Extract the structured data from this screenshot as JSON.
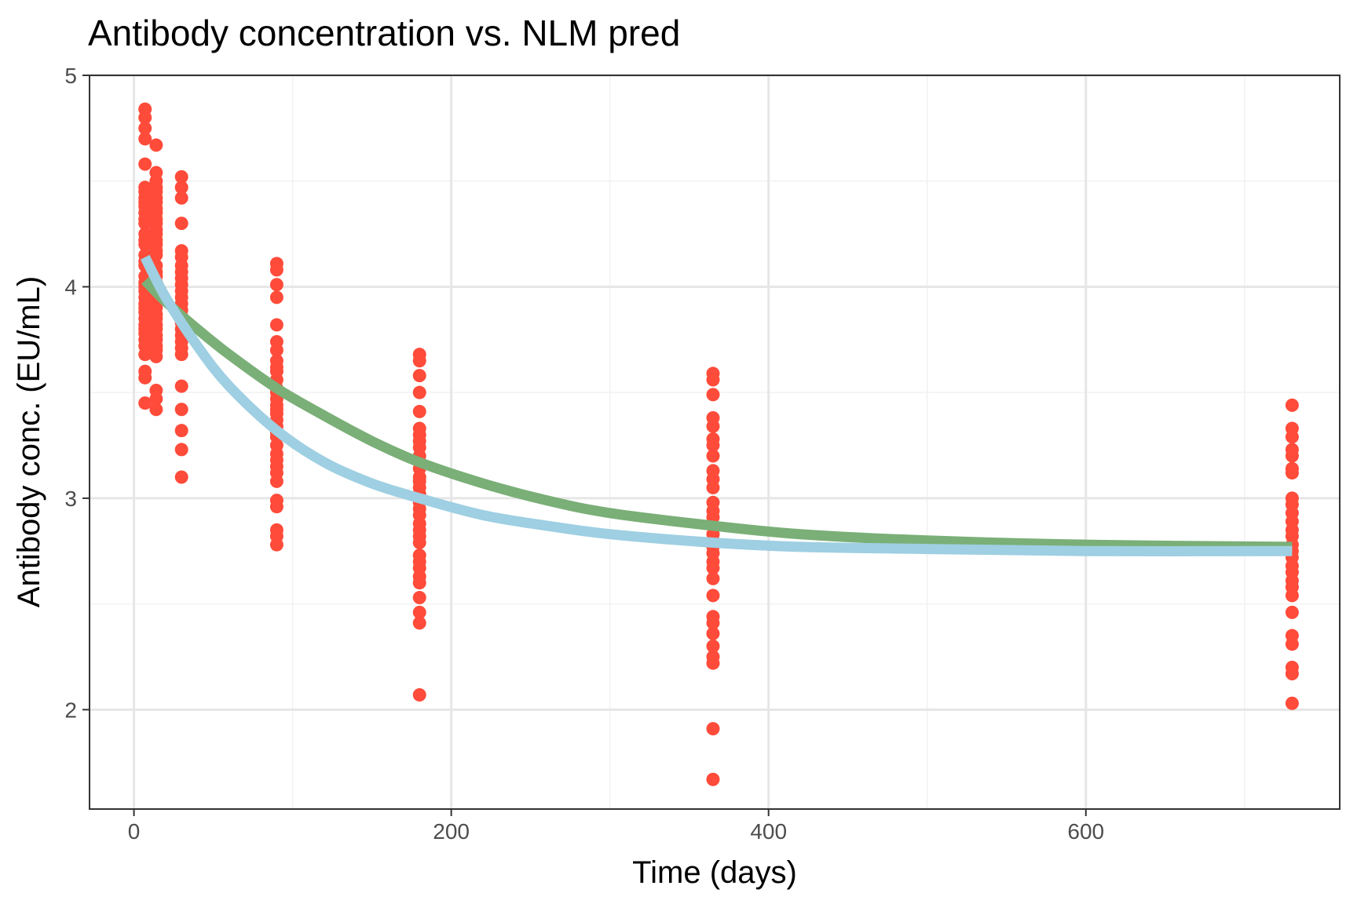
{
  "chart_data": {
    "type": "scatter",
    "title": "Antibody concentration vs. NLM pred",
    "xlabel": "Time (days)",
    "ylabel": "Antibody conc. (EU/mL)",
    "xlim": [
      -28,
      760
    ],
    "ylim": [
      1.53,
      5.0
    ],
    "x_ticks": [
      0,
      200,
      400,
      600
    ],
    "y_ticks": [
      2,
      3,
      4,
      5
    ],
    "grid": true,
    "legend": "none",
    "colors": {
      "points": "#ff4b3a",
      "curve_green": "#7aaf77",
      "curve_blue": "#9ecfe2",
      "grid_major": "#e6e6e6",
      "grid_minor": "#f2f2f2",
      "panel_border": "#333333"
    },
    "points": [
      {
        "x": 7,
        "y": [
          4.84,
          4.8,
          4.75,
          4.7,
          4.58,
          4.47,
          4.45,
          4.42,
          4.4,
          4.38,
          4.35,
          4.32,
          4.3,
          4.25,
          4.22,
          4.2,
          4.15,
          4.12,
          4.1,
          4.05,
          4.02,
          4.0,
          3.98,
          3.95,
          3.92,
          3.9,
          3.88,
          3.85,
          3.82,
          3.8,
          3.78,
          3.75,
          3.72,
          3.68,
          3.6,
          3.57,
          3.45
        ]
      },
      {
        "x": 14,
        "y": [
          4.67,
          4.54,
          4.5,
          4.47,
          4.45,
          4.42,
          4.4,
          4.37,
          4.35,
          4.32,
          4.3,
          4.27,
          4.25,
          4.22,
          4.2,
          4.17,
          4.15,
          4.1,
          4.07,
          4.05,
          4.02,
          4.0,
          3.97,
          3.95,
          3.92,
          3.9,
          3.87,
          3.85,
          3.82,
          3.8,
          3.77,
          3.75,
          3.72,
          3.7,
          3.67,
          3.51,
          3.47,
          3.42
        ]
      },
      {
        "x": 30,
        "y": [
          4.52,
          4.47,
          4.42,
          4.3,
          4.17,
          4.14,
          4.1,
          4.07,
          4.04,
          4.01,
          3.98,
          3.95,
          3.92,
          3.89,
          3.86,
          3.83,
          3.8,
          3.77,
          3.74,
          3.71,
          3.68,
          3.53,
          3.42,
          3.32,
          3.23,
          3.1
        ]
      },
      {
        "x": 90,
        "y": [
          4.11,
          4.08,
          4.01,
          3.95,
          3.82,
          3.74,
          3.7,
          3.65,
          3.62,
          3.6,
          3.56,
          3.52,
          3.5,
          3.47,
          3.44,
          3.42,
          3.4,
          3.37,
          3.34,
          3.31,
          3.29,
          3.25,
          3.21,
          3.18,
          3.15,
          3.12,
          3.08,
          2.99,
          2.96,
          2.85,
          2.82,
          2.78
        ]
      },
      {
        "x": 180,
        "y": [
          3.68,
          3.65,
          3.58,
          3.5,
          3.41,
          3.33,
          3.3,
          3.27,
          3.24,
          3.2,
          3.17,
          3.14,
          3.1,
          3.08,
          3.05,
          3.02,
          2.98,
          2.95,
          2.92,
          2.88,
          2.85,
          2.82,
          2.79,
          2.73,
          2.7,
          2.67,
          2.63,
          2.6,
          2.53,
          2.46,
          2.41,
          2.07
        ]
      },
      {
        "x": 365,
        "y": [
          3.59,
          3.56,
          3.49,
          3.38,
          3.34,
          3.28,
          3.25,
          3.2,
          3.13,
          3.09,
          3.05,
          2.98,
          2.94,
          2.91,
          2.87,
          2.83,
          2.8,
          2.77,
          2.74,
          2.7,
          2.67,
          2.62,
          2.54,
          2.44,
          2.41,
          2.36,
          2.3,
          2.25,
          2.22,
          1.91,
          1.67
        ]
      },
      {
        "x": 730,
        "y": [
          3.44,
          3.33,
          3.29,
          3.23,
          3.2,
          3.14,
          3.12,
          3.0,
          2.97,
          2.93,
          2.89,
          2.85,
          2.82,
          2.78,
          2.75,
          2.72,
          2.68,
          2.65,
          2.61,
          2.58,
          2.54,
          2.46,
          2.35,
          2.31,
          2.2,
          2.17,
          2.03
        ]
      }
    ],
    "series": [
      {
        "style": "curve_green",
        "x": [
          7,
          20,
          40,
          60,
          90,
          120,
          150,
          180,
          220,
          260,
          300,
          365,
          420,
          500,
          600,
          730
        ],
        "y": [
          4.03,
          3.93,
          3.8,
          3.68,
          3.52,
          3.39,
          3.27,
          3.17,
          3.07,
          2.99,
          2.93,
          2.87,
          2.83,
          2.8,
          2.78,
          2.77
        ]
      },
      {
        "style": "curve_blue",
        "x": [
          7,
          20,
          40,
          60,
          90,
          120,
          150,
          180,
          220,
          260,
          300,
          365,
          420,
          500,
          600,
          730
        ],
        "y": [
          4.14,
          3.95,
          3.72,
          3.53,
          3.32,
          3.17,
          3.07,
          3.0,
          2.92,
          2.87,
          2.83,
          2.79,
          2.77,
          2.76,
          2.75,
          2.75
        ]
      }
    ]
  }
}
